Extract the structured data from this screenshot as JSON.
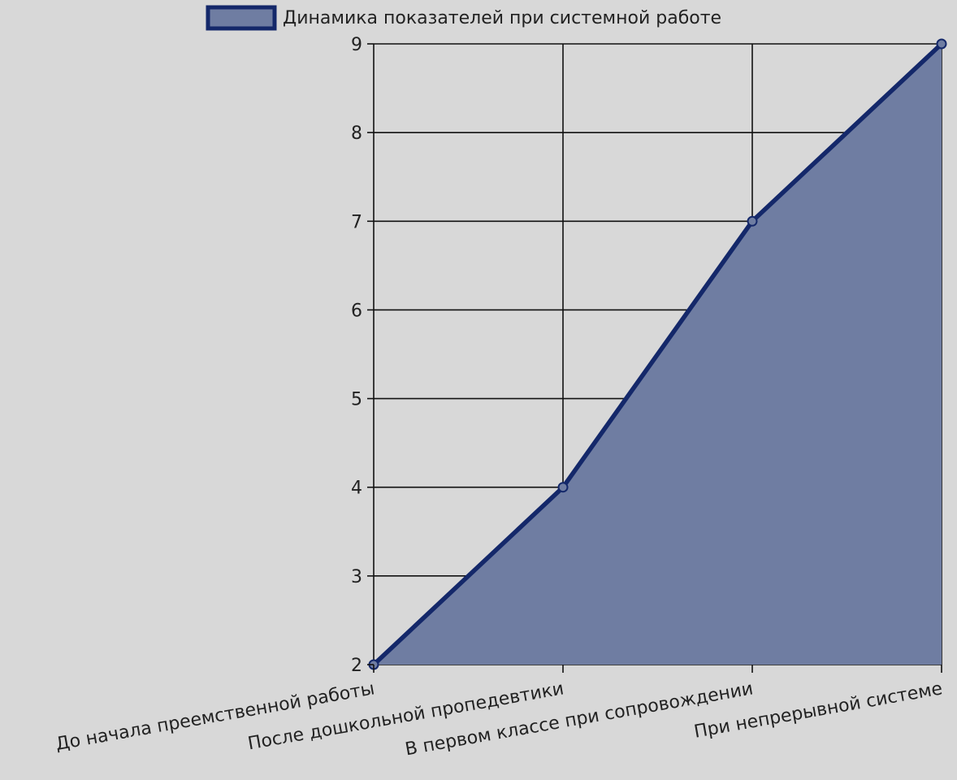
{
  "chart_data": {
    "type": "area",
    "categories": [
      "До начала преемственной работы",
      "После дошкольной пропедевтики",
      "В первом классе при сопровождении",
      "При непрерывной системе"
    ],
    "series": [
      {
        "name": "Динамика показателей при системной работе",
        "values": [
          2,
          4,
          7,
          9
        ],
        "line_color": "#14286a",
        "fill_color": "#6f7da2"
      }
    ],
    "y_ticks": [
      2,
      3,
      4,
      5,
      6,
      7,
      8,
      9
    ],
    "ylim": [
      2,
      9
    ],
    "grid": true,
    "legend": "top",
    "title": "",
    "xlabel": "",
    "ylabel": ""
  },
  "colors": {
    "background": "#d8d8d8",
    "grid": "#111111",
    "text": "#222222"
  }
}
